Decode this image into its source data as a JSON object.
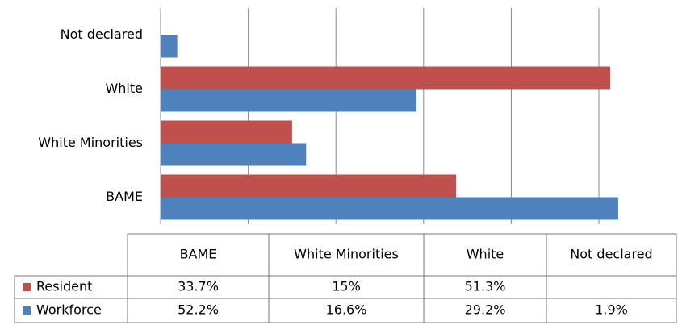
{
  "chart_data": {
    "type": "bar",
    "orientation": "horizontal",
    "categories": [
      "BAME",
      "White Minorities",
      "White",
      "Not declared"
    ],
    "series": [
      {
        "name": "Resident",
        "color": "#c0504d",
        "values": [
          33.7,
          15,
          51.3,
          null
        ],
        "value_labels": [
          "33.7%",
          "15%",
          "51.3%",
          null
        ]
      },
      {
        "name": "Workforce",
        "color": "#4f81bd",
        "values": [
          52.2,
          16.6,
          29.2,
          1.9
        ],
        "value_labels": [
          "52.2%",
          "16.6%",
          "29.2%",
          "1.9%"
        ]
      }
    ],
    "xlim": [
      0,
      60
    ],
    "xticks": [
      0,
      10,
      20,
      30,
      40,
      50
    ],
    "grid": true,
    "data_table": true
  }
}
